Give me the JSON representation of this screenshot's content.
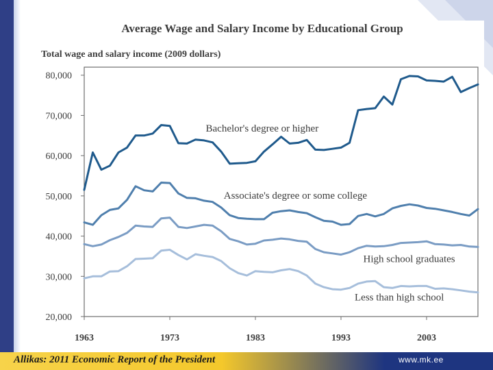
{
  "footer": {
    "source": "Allikas: 2011 Economic Report of the President",
    "website": "www.mk.ee"
  },
  "colors": {
    "bachelor": "#1f5a8c",
    "associate": "#4f7fad",
    "highschool": "#7a9cc4",
    "less": "#a6bedb",
    "frame": "#6e6e6e",
    "sidebar": "#2f3f86"
  },
  "chart_data": {
    "type": "line",
    "title": "Average Wage and Salary Income by Educational Group",
    "ylabel": "Total wage and salary income (2009 dollars)",
    "xlabel": "",
    "xlim": [
      1963,
      2009
    ],
    "ylim": [
      20000,
      82000
    ],
    "x_ticks": [
      1963,
      1973,
      1983,
      1993,
      2003
    ],
    "x_tick_labels": [
      "1963",
      "1973",
      "1983",
      "1993",
      "2003"
    ],
    "y_ticks": [
      20000,
      30000,
      40000,
      50000,
      60000,
      70000,
      80000
    ],
    "y_tick_labels": [
      "20,000",
      "30,000",
      "40,000",
      "50,000",
      "60,000",
      "70,000",
      "80,000"
    ],
    "x": [
      1963,
      1964,
      1965,
      1966,
      1967,
      1968,
      1969,
      1970,
      1971,
      1972,
      1973,
      1974,
      1975,
      1976,
      1977,
      1978,
      1979,
      1980,
      1981,
      1982,
      1983,
      1984,
      1985,
      1986,
      1987,
      1988,
      1989,
      1990,
      1991,
      1992,
      1993,
      1994,
      1995,
      1996,
      1997,
      1998,
      1999,
      2000,
      2001,
      2002,
      2003,
      2004,
      2005,
      2006,
      2007,
      2008,
      2009
    ],
    "series": [
      {
        "name": "Bachelor's degree or higher",
        "label": "Bachelor's degree or higher",
        "values": [
          51500,
          60800,
          56500,
          57500,
          60800,
          62000,
          65000,
          65000,
          65500,
          67600,
          67400,
          63100,
          63000,
          64000,
          63800,
          63300,
          61000,
          58000,
          58100,
          58200,
          58600,
          61000,
          62800,
          64700,
          63000,
          63200,
          63900,
          61500,
          61400,
          61700,
          62000,
          63200,
          71300,
          71600,
          71800,
          74700,
          72700,
          79000,
          79800,
          79700,
          78700,
          78600,
          78400,
          79600,
          75800,
          76800,
          77700
        ]
      },
      {
        "name": "Associate's degree or some college",
        "label": "Associate's degree or some college",
        "values": [
          43400,
          42800,
          45200,
          46500,
          46900,
          49000,
          52400,
          51400,
          51100,
          53300,
          53200,
          50600,
          49500,
          49400,
          48800,
          48500,
          47100,
          45200,
          44500,
          44300,
          44200,
          44200,
          45800,
          46200,
          46400,
          46000,
          45700,
          44700,
          43800,
          43600,
          42800,
          43000,
          45000,
          45500,
          44900,
          45500,
          46900,
          47500,
          47900,
          47600,
          47000,
          46800,
          46400,
          46000,
          45500,
          45100,
          46700
        ]
      },
      {
        "name": "High school graduates",
        "label": "High school graduates",
        "values": [
          38000,
          37500,
          37900,
          39000,
          39800,
          40800,
          42600,
          42400,
          42300,
          44400,
          44600,
          42300,
          42000,
          42400,
          42800,
          42600,
          41200,
          39300,
          38700,
          37900,
          38100,
          38900,
          39100,
          39400,
          39200,
          38800,
          38600,
          36800,
          36000,
          35700,
          35400,
          36000,
          37000,
          37600,
          37400,
          37500,
          37800,
          38300,
          38400,
          38500,
          38700,
          38000,
          37900,
          37700,
          37800,
          37400,
          37300
        ]
      },
      {
        "name": "Less than high school",
        "label": "Less than high school",
        "values": [
          29500,
          30000,
          30000,
          31200,
          31300,
          32500,
          34300,
          34400,
          34500,
          36400,
          36600,
          35300,
          34200,
          35500,
          35100,
          34800,
          33800,
          32000,
          30800,
          30200,
          31300,
          31100,
          31000,
          31500,
          31800,
          31300,
          30200,
          28200,
          27300,
          26800,
          26700,
          27100,
          28200,
          28700,
          28800,
          27300,
          27100,
          27600,
          27500,
          27600,
          27600,
          26900,
          27000,
          26800,
          26500,
          26200,
          26000
        ]
      }
    ],
    "grid": false,
    "legend": "inline labels"
  }
}
